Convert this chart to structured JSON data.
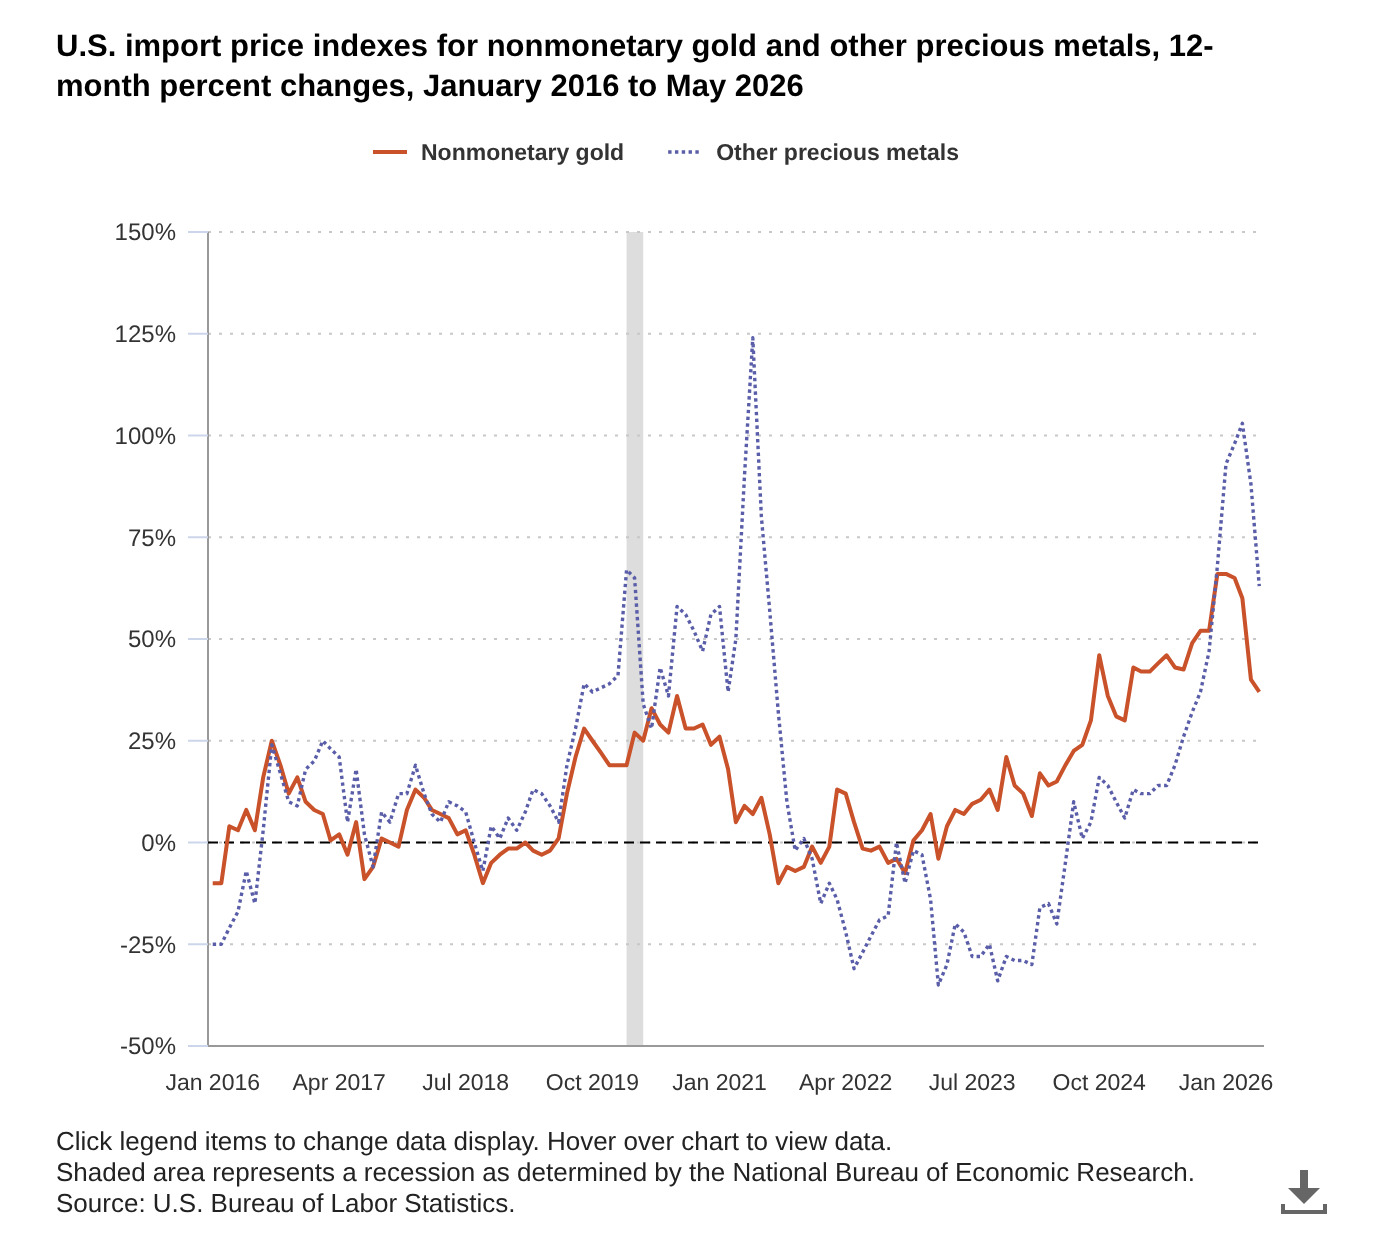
{
  "chart_data": {
    "type": "line",
    "title": "U.S. import price indexes for nonmonetary gold and other precious metals, 12-month percent changes, January 2016 to May 2026",
    "x": [
      "2016-01",
      "2016-02",
      "2016-03",
      "2016-04",
      "2016-05",
      "2016-06",
      "2016-07",
      "2016-08",
      "2016-09",
      "2016-10",
      "2016-11",
      "2016-12",
      "2017-01",
      "2017-02",
      "2017-03",
      "2017-04",
      "2017-05",
      "2017-06",
      "2017-07",
      "2017-08",
      "2017-09",
      "2017-10",
      "2017-11",
      "2017-12",
      "2018-01",
      "2018-02",
      "2018-03",
      "2018-04",
      "2018-05",
      "2018-06",
      "2018-07",
      "2018-08",
      "2018-09",
      "2018-10",
      "2018-11",
      "2018-12",
      "2019-01",
      "2019-02",
      "2019-03",
      "2019-04",
      "2019-05",
      "2019-06",
      "2019-07",
      "2019-08",
      "2019-09",
      "2019-10",
      "2019-11",
      "2019-12",
      "2020-01",
      "2020-02",
      "2020-03",
      "2020-04",
      "2020-05",
      "2020-06",
      "2020-07",
      "2020-08",
      "2020-09",
      "2020-10",
      "2020-11",
      "2020-12",
      "2021-01",
      "2021-02",
      "2021-03",
      "2021-04",
      "2021-05",
      "2021-06",
      "2021-07",
      "2021-08",
      "2021-09",
      "2021-10",
      "2021-11",
      "2021-12",
      "2022-01",
      "2022-02",
      "2022-03",
      "2022-04",
      "2022-05",
      "2022-06",
      "2022-07",
      "2022-08",
      "2022-09",
      "2022-10",
      "2022-11",
      "2022-12",
      "2023-01",
      "2023-02",
      "2023-03",
      "2023-04",
      "2023-05",
      "2023-06",
      "2023-07",
      "2023-08",
      "2023-09",
      "2023-10",
      "2023-11",
      "2023-12",
      "2024-01",
      "2024-02",
      "2024-03",
      "2024-04",
      "2024-05",
      "2024-06",
      "2024-07",
      "2024-08",
      "2024-09",
      "2024-10",
      "2024-11",
      "2024-12",
      "2025-01",
      "2025-02",
      "2025-03",
      "2025-04",
      "2025-05",
      "2025-06",
      "2025-07",
      "2025-08",
      "2025-09",
      "2025-10",
      "2025-11",
      "2025-12",
      "2026-01",
      "2026-02",
      "2026-03",
      "2026-04",
      "2026-05"
    ],
    "series": [
      {
        "name": "Nonmonetary gold",
        "color": "#c9522a",
        "line_style": "solid",
        "values": [
          -10,
          -10,
          4,
          3,
          8,
          3,
          16,
          25,
          19,
          12,
          16,
          10,
          8,
          7,
          0.5,
          2,
          -3,
          5,
          -9,
          -6,
          1,
          0,
          -1,
          8,
          13,
          11,
          8,
          7,
          6,
          2,
          3,
          -3,
          -10,
          -5,
          -3,
          -1.5,
          -1.5,
          0,
          -2,
          -3,
          -2,
          1,
          12,
          21,
          28,
          25,
          22,
          19,
          19,
          19,
          27,
          25,
          33,
          29,
          27,
          36,
          28,
          28,
          29,
          24,
          26,
          18,
          5,
          9,
          7,
          11,
          2,
          -10,
          -6,
          -7,
          -6,
          -1,
          -5,
          -1,
          13,
          12,
          5,
          -1.5,
          -2,
          -1,
          -5,
          -4,
          -7.5,
          0.5,
          3,
          7,
          -4,
          4,
          8,
          7,
          9.5,
          10.5,
          13,
          8,
          21,
          14,
          12,
          6.5,
          17,
          14,
          15,
          19,
          22.5,
          24,
          30,
          46,
          36,
          31,
          30,
          43,
          42,
          42,
          44,
          46,
          43,
          42.5,
          49,
          52,
          52,
          66,
          66,
          65,
          60,
          40,
          37
        ]
      },
      {
        "name": "Other precious metals",
        "color": "#5a5ea8",
        "line_style": "dotted",
        "values": [
          -25,
          -25,
          -21,
          -17,
          -7,
          -15,
          3,
          24,
          17,
          10,
          9,
          18,
          20,
          25,
          23,
          21,
          5,
          18,
          2,
          -6,
          7.5,
          5,
          12,
          12,
          19,
          12,
          7,
          5,
          10,
          9,
          7.5,
          0,
          -7,
          4,
          1,
          6,
          3,
          7.5,
          13,
          12,
          9,
          5,
          19,
          28,
          39,
          37,
          38,
          39,
          41,
          67,
          65,
          34,
          28,
          43,
          36,
          58,
          56,
          52,
          47,
          56,
          58,
          37,
          50,
          90,
          124,
          80,
          57,
          32,
          10,
          -2,
          1,
          -4,
          -15,
          -10,
          -14,
          -22,
          -31,
          -27,
          -23,
          -19,
          -18,
          0,
          -10,
          -2,
          -3,
          -14,
          -35,
          -30,
          -20,
          -22,
          -28,
          -28,
          -25,
          -34,
          -28,
          -29,
          -29,
          -30,
          -16,
          -15,
          -20,
          -5,
          10,
          1,
          5,
          16,
          14,
          10,
          6,
          13,
          12,
          12,
          14,
          14,
          19,
          26,
          32,
          37,
          47,
          68,
          93,
          98,
          103,
          88,
          63
        ]
      }
    ],
    "xlim": [
      "2015-12-15",
      "2026-05-18"
    ],
    "xticks": [
      {
        "value": "2016-01",
        "label": "Jan 2016"
      },
      {
        "value": "2017-04",
        "label": "Apr 2017"
      },
      {
        "value": "2018-07",
        "label": "Jul 2018"
      },
      {
        "value": "2019-10",
        "label": "Oct 2019"
      },
      {
        "value": "2021-01",
        "label": "Jan 2021"
      },
      {
        "value": "2022-04",
        "label": "Apr 2022"
      },
      {
        "value": "2023-07",
        "label": "Jul 2023"
      },
      {
        "value": "2024-10",
        "label": "Oct 2024"
      },
      {
        "value": "2026-01",
        "label": "Jan 2026"
      }
    ],
    "ylim": [
      -50,
      150
    ],
    "yticks": [
      {
        "value": -50,
        "label": "-50%"
      },
      {
        "value": -25,
        "label": "-25%"
      },
      {
        "value": 0,
        "label": "0%"
      },
      {
        "value": 25,
        "label": "25%"
      },
      {
        "value": 50,
        "label": "50%"
      },
      {
        "value": 75,
        "label": "75%"
      },
      {
        "value": 100,
        "label": "100%"
      },
      {
        "value": 125,
        "label": "125%"
      },
      {
        "value": 150,
        "label": "150%"
      }
    ],
    "grid": "y",
    "legend": "top",
    "ref_lines": [
      {
        "axis": "y",
        "value": 0,
        "color": "#000000",
        "line_style": "dashed"
      }
    ],
    "bands": [
      {
        "axis": "x",
        "from": "2020-02",
        "to": "2020-04",
        "color": "#dddddd"
      }
    ],
    "annotations": [
      "Click legend items to change data display. Hover over chart to view data.",
      "Shaded area represents a recession as determined by the National Bureau of Economic Research.",
      "Source: U.S. Bureau of Labor Statistics."
    ]
  }
}
